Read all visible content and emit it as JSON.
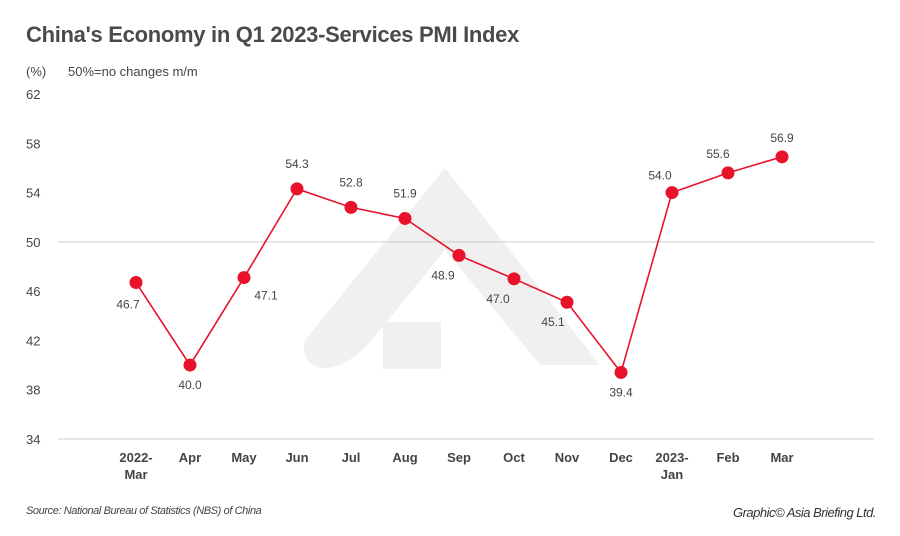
{
  "chart_data": {
    "type": "line",
    "title": "China's Economy in Q1 2023-Services PMI Index",
    "ylabel": "(%)",
    "annotation": "50%=no changes m/m",
    "categories": [
      "2022-\nMar",
      "Apr",
      "May",
      "Jun",
      "Jul",
      "Aug",
      "Sep",
      "Oct",
      "Nov",
      "Dec",
      "2023-\nJan",
      "Feb",
      "Mar"
    ],
    "values": [
      46.7,
      40.0,
      47.1,
      54.3,
      52.8,
      51.9,
      48.9,
      47.0,
      45.1,
      39.4,
      54.0,
      55.6,
      56.9
    ],
    "data_labels": [
      "46.7",
      "40.0",
      "47.1",
      "54.3",
      "52.8",
      "51.9",
      "48.9",
      "47.0",
      "45.1",
      "39.4",
      "54.0",
      "55.6",
      "56.9"
    ],
    "ylim": [
      34,
      62
    ],
    "yticks": [
      62,
      58,
      54,
      50,
      46,
      42,
      38,
      34
    ],
    "reference_line": 50,
    "grid": false,
    "legend": "none",
    "colors": {
      "line": "#e8132b",
      "marker": "#e8132b",
      "reference": "#cccccc",
      "watermark": "#f0f0f0"
    }
  },
  "footer": {
    "source": "Source: National Bureau of Statistics (NBS) of China",
    "credit": "Graphic© Asia Briefing Ltd."
  }
}
